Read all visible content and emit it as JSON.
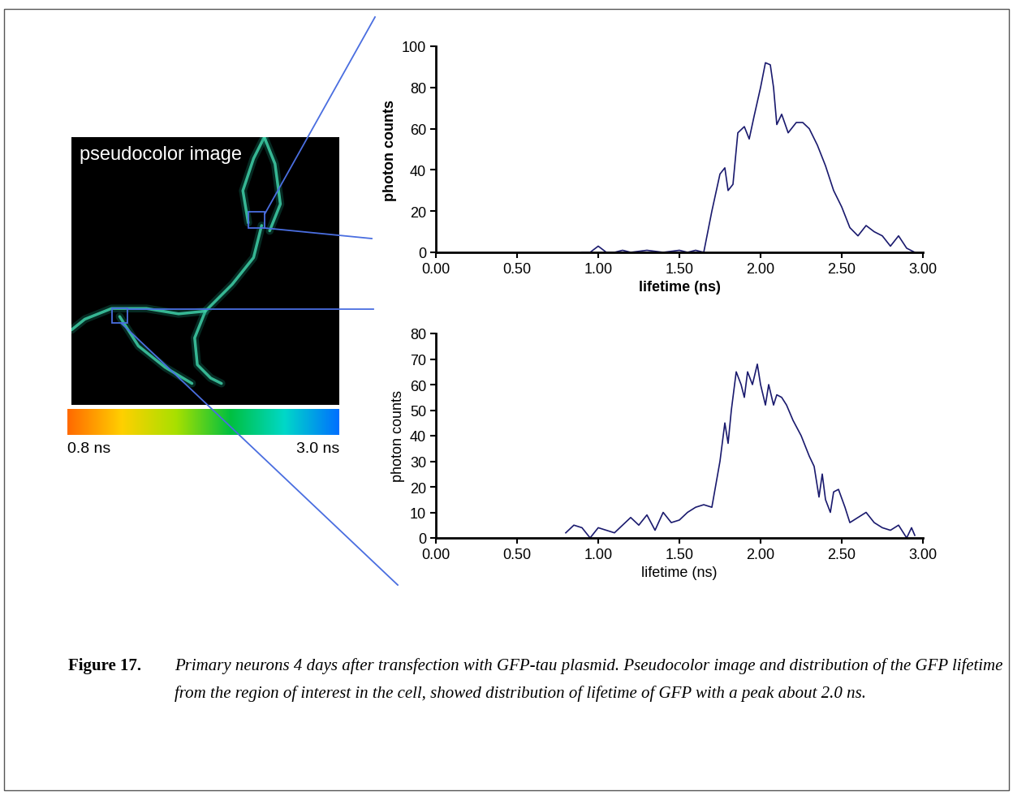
{
  "chart_data": [
    {
      "type": "line",
      "x_label": "lifetime (ns)",
      "y_label": "photon counts",
      "color": "#1a1a6e",
      "x": [
        0.9,
        0.95,
        1.0,
        1.05,
        1.1,
        1.15,
        1.2,
        1.3,
        1.4,
        1.5,
        1.55,
        1.6,
        1.65,
        1.7,
        1.75,
        1.78,
        1.8,
        1.83,
        1.86,
        1.9,
        1.93,
        1.96,
        2.0,
        2.03,
        2.06,
        2.08,
        2.1,
        2.13,
        2.17,
        2.22,
        2.26,
        2.3,
        2.35,
        2.4,
        2.45,
        2.5,
        2.55,
        2.6,
        2.65,
        2.7,
        2.75,
        2.8,
        2.85,
        2.9,
        2.95
      ],
      "values": [
        0,
        0,
        3,
        0,
        0,
        1,
        0,
        1,
        0,
        1,
        0,
        1,
        0,
        20,
        38,
        41,
        30,
        33,
        58,
        61,
        55,
        66,
        80,
        92,
        91,
        80,
        62,
        67,
        58,
        63,
        63,
        60,
        52,
        42,
        30,
        22,
        12,
        8,
        13,
        10,
        8,
        3,
        8,
        2,
        0
      ],
      "xlim": [
        0,
        3.0
      ],
      "xticks": [
        {
          "value": 0,
          "label": "0.00"
        },
        {
          "value": 0.5,
          "label": "0.50"
        },
        {
          "value": 1.0,
          "label": "1.00"
        },
        {
          "value": 1.5,
          "label": "1.50"
        },
        {
          "value": 2.0,
          "label": "2.00"
        },
        {
          "value": 2.5,
          "label": "2.50"
        },
        {
          "value": 3.0,
          "label": "3.00"
        }
      ],
      "ylim": [
        0,
        100
      ],
      "yticks": [
        0,
        20,
        40,
        60,
        80,
        100
      ]
    },
    {
      "type": "line",
      "x_label": "lifetime (ns)",
      "y_label": "photon counts",
      "color": "#1a1a6e",
      "x": [
        0.8,
        0.85,
        0.9,
        0.95,
        1.0,
        1.05,
        1.1,
        1.15,
        1.2,
        1.25,
        1.3,
        1.35,
        1.4,
        1.45,
        1.5,
        1.55,
        1.6,
        1.65,
        1.7,
        1.75,
        1.78,
        1.8,
        1.82,
        1.85,
        1.88,
        1.9,
        1.92,
        1.95,
        1.98,
        2.0,
        2.03,
        2.05,
        2.08,
        2.1,
        2.13,
        2.16,
        2.2,
        2.25,
        2.3,
        2.33,
        2.36,
        2.38,
        2.4,
        2.43,
        2.45,
        2.48,
        2.52,
        2.55,
        2.6,
        2.65,
        2.7,
        2.75,
        2.8,
        2.85,
        2.9,
        2.93,
        2.95
      ],
      "values": [
        2,
        5,
        4,
        0,
        4,
        3,
        2,
        5,
        8,
        5,
        9,
        3,
        10,
        6,
        7,
        10,
        12,
        13,
        12,
        30,
        45,
        37,
        50,
        65,
        60,
        55,
        65,
        60,
        68,
        60,
        52,
        60,
        52,
        56,
        55,
        52,
        46,
        40,
        32,
        28,
        16,
        25,
        15,
        10,
        18,
        19,
        12,
        6,
        8,
        10,
        6,
        4,
        3,
        5,
        0,
        4,
        1
      ],
      "xlim": [
        0,
        3.0
      ],
      "xticks": [
        {
          "value": 0,
          "label": "0.00"
        },
        {
          "value": 0.5,
          "label": "0.50"
        },
        {
          "value": 1.0,
          "label": "1.00"
        },
        {
          "value": 1.5,
          "label": "1.50"
        },
        {
          "value": 2.0,
          "label": "2.00"
        },
        {
          "value": 2.5,
          "label": "2.50"
        },
        {
          "value": 3.0,
          "label": "3.00"
        }
      ],
      "ylim": [
        0,
        80
      ],
      "yticks": [
        0,
        10,
        20,
        30,
        40,
        50,
        60,
        70,
        80
      ]
    }
  ],
  "image": {
    "label": "pseudocolor image",
    "colorbar": {
      "range": [
        0.8,
        3.0
      ],
      "ticks": [
        {
          "value": 0.8,
          "label": "0.8 ns"
        },
        {
          "value": 3.0,
          "label": "3.0 ns"
        }
      ]
    }
  },
  "caption": {
    "label": "Figure 17.",
    "text": "Primary neurons 4 days after transfection with GFP-tau plasmid. Pseudocolor image and distribution of the GFP lifetime from the region of interest in the cell, showed distribution of lifetime of GFP with a peak about 2.0 ns."
  }
}
